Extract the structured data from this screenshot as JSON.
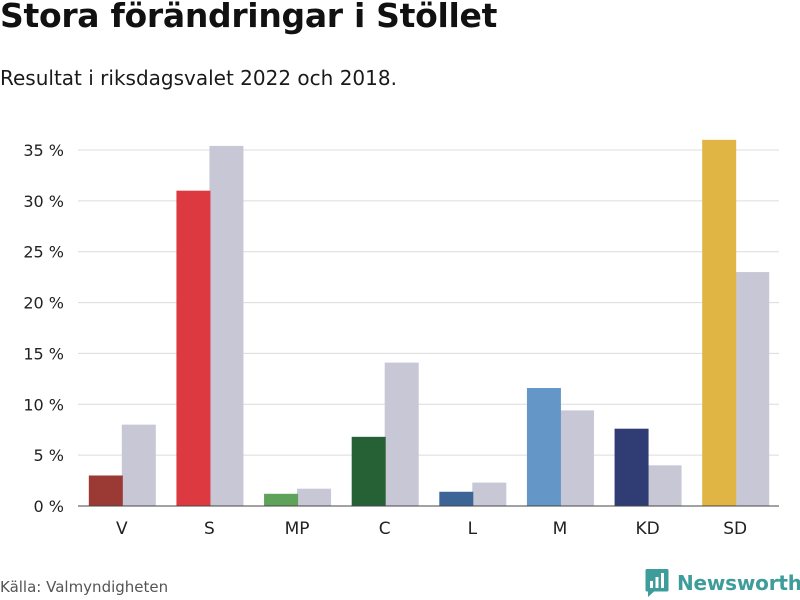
{
  "title": "Stora förändringar i Stöllet",
  "subtitle": "Resultat i riksdagsvalet 2022 och 2018.",
  "source": "Källa: Valmyndigheten",
  "brand": {
    "name": "Newsworthy",
    "icon": "newsworthy-logo-icon",
    "color": "#3e9c9a"
  },
  "chart_data": {
    "type": "bar",
    "categories": [
      "V",
      "S",
      "MP",
      "C",
      "L",
      "M",
      "KD",
      "SD"
    ],
    "series": [
      {
        "values": [
          3.0,
          31.0,
          1.2,
          6.8,
          1.4,
          11.6,
          7.6,
          36.0
        ],
        "colors": [
          "#9b3a35",
          "#dc3a40",
          "#5fa35a",
          "#266135",
          "#3c6496",
          "#6497c7",
          "#2f3d74",
          "#e0b544"
        ]
      },
      {
        "values": [
          8.0,
          35.4,
          1.7,
          14.1,
          2.3,
          9.4,
          4.0,
          23.0
        ],
        "color": "#c8c7d5"
      }
    ],
    "yticks": [
      0,
      5,
      10,
      15,
      20,
      25,
      30,
      35
    ],
    "ytick_labels": [
      "0 %",
      "5 %",
      "10 %",
      "15 %",
      "20 %",
      "25 %",
      "30 %",
      "35 %"
    ],
    "ylim": [
      0,
      36
    ],
    "grid": true,
    "xlabel": "",
    "ylabel": ""
  }
}
